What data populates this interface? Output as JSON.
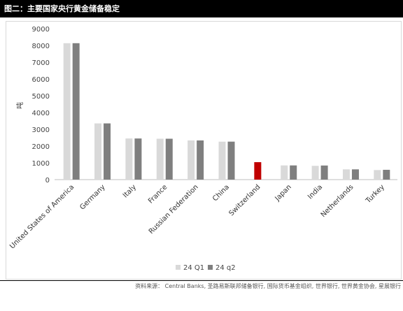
{
  "header": {
    "title": "图二：主要国家央行黄金储备稳定"
  },
  "source": "资料来源： Central Banks, 圣路易斯联邦储备银行, 国际货币基金组织, 世界银行, 世界黄金协会, 星展银行",
  "colors": {
    "q1": "#d9d9d9",
    "q2": "#7f7f7f",
    "highlight": "#c00000"
  },
  "chart_data": {
    "type": "bar",
    "title": "",
    "xlabel": "",
    "ylabel": "吨",
    "ylim": [
      0,
      9000
    ],
    "yticks": [
      0,
      1000,
      2000,
      3000,
      4000,
      5000,
      6000,
      7000,
      8000,
      9000
    ],
    "grid": false,
    "legend_position": "bottom",
    "categories": [
      "United States of America",
      "Germany",
      "Italy",
      "France",
      "Russian Federation",
      "China",
      "Switzerland",
      "Japan",
      "India",
      "Netherlands",
      "Turkey"
    ],
    "series": [
      {
        "name": "24 Q1",
        "values": [
          8133,
          3352,
          2452,
          2437,
          2336,
          2262,
          null,
          846,
          822,
          612,
          570
        ]
      },
      {
        "name": "24 q2",
        "values": [
          8133,
          3352,
          2452,
          2437,
          2336,
          2264,
          1040,
          846,
          840,
          612,
          585
        ]
      }
    ],
    "highlight_category": "Switzerland"
  }
}
